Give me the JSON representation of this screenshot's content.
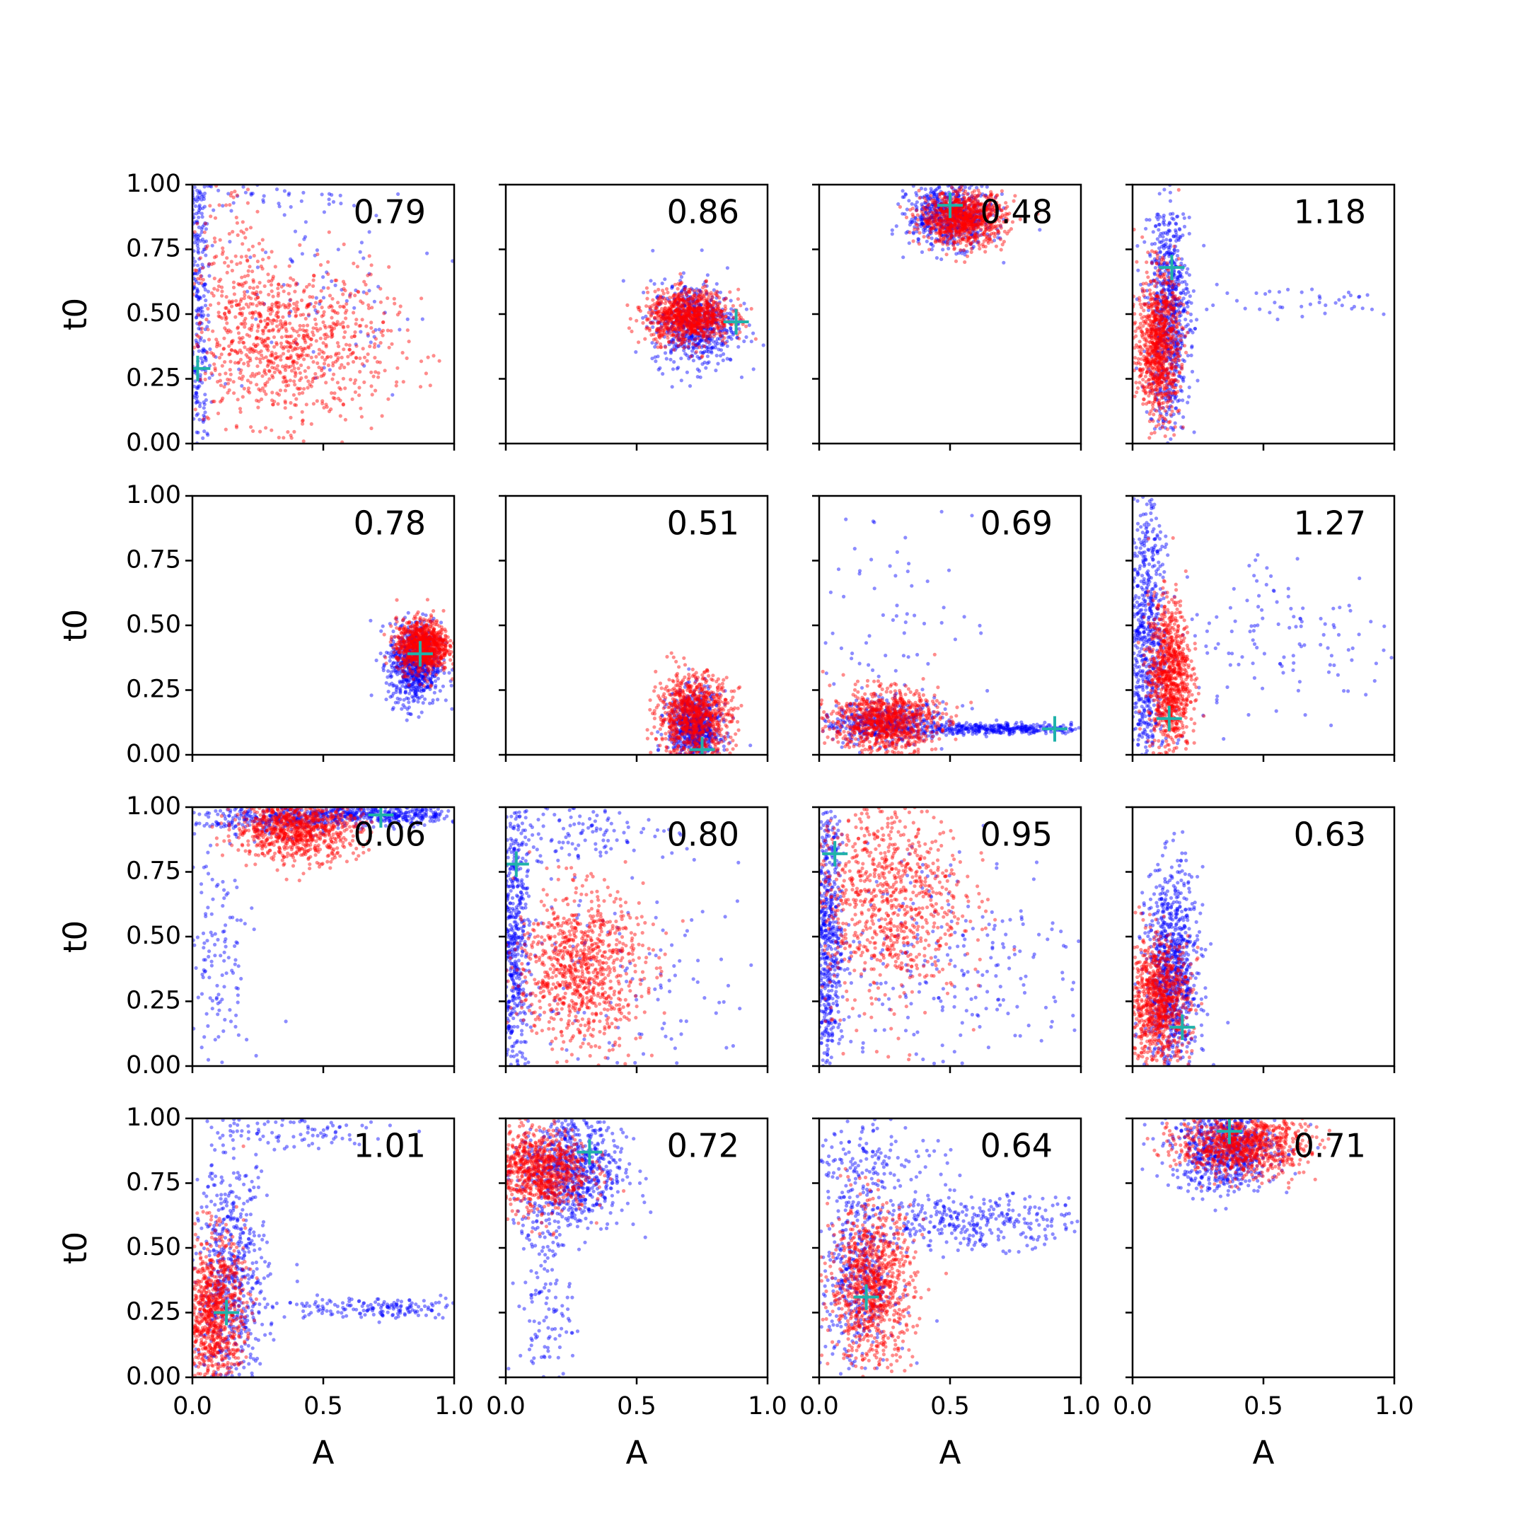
{
  "chart_data": {
    "type": "scatter",
    "layout": {
      "rows": 4,
      "cols": 4
    },
    "x_label": "A",
    "y_label": "t0",
    "xlim": [
      0,
      1
    ],
    "ylim": [
      0,
      1
    ],
    "x_ticks": [
      "0.0",
      "0.5",
      "1.0"
    ],
    "y_ticks": [
      "0.00",
      "0.25",
      "0.50",
      "0.75",
      "1.00"
    ],
    "series_colors": {
      "blue": "#0000ff",
      "red": "#ff0000",
      "marker": "#20b2aa"
    },
    "panels": [
      {
        "annotation": "0.79",
        "marker": [
          0.02,
          0.29
        ],
        "blue": [
          [
            0.02,
            0.5,
            0.025,
            0.6,
            0.6
          ],
          [
            0.2,
            0.95,
            0.25,
            0.03,
            0.05
          ],
          [
            0.55,
            0.55,
            0.3,
            0.2,
            0.1
          ]
        ],
        "red": [
          [
            0.35,
            0.38,
            0.2,
            0.15,
            1.0
          ],
          [
            0.15,
            0.7,
            0.08,
            0.2,
            0.15
          ]
        ]
      },
      {
        "annotation": "0.86",
        "marker": [
          0.88,
          0.47
        ],
        "blue": [
          [
            0.72,
            0.46,
            0.08,
            0.08,
            0.7
          ]
        ],
        "red": [
          [
            0.7,
            0.49,
            0.08,
            0.05,
            1.0
          ]
        ]
      },
      {
        "annotation": "0.48",
        "marker": [
          0.5,
          0.92
        ],
        "blue": [
          [
            0.5,
            0.88,
            0.08,
            0.06,
            0.7
          ]
        ],
        "red": [
          [
            0.55,
            0.87,
            0.08,
            0.05,
            1.0
          ]
        ]
      },
      {
        "annotation": "1.18",
        "marker": [
          0.15,
          0.68
        ],
        "blue": [
          [
            0.14,
            0.5,
            0.04,
            0.22,
            0.8
          ],
          [
            0.6,
            0.55,
            0.25,
            0.04,
            0.05
          ]
        ],
        "red": [
          [
            0.1,
            0.38,
            0.04,
            0.14,
            1.0
          ]
        ]
      },
      {
        "annotation": "0.78",
        "marker": [
          0.87,
          0.39
        ],
        "blue": [
          [
            0.85,
            0.35,
            0.05,
            0.08,
            0.8
          ]
        ],
        "red": [
          [
            0.88,
            0.42,
            0.05,
            0.05,
            1.0
          ]
        ]
      },
      {
        "annotation": "0.51",
        "marker": [
          0.75,
          0.02
        ],
        "blue": [
          [
            0.72,
            0.1,
            0.05,
            0.07,
            0.8
          ]
        ],
        "red": [
          [
            0.72,
            0.15,
            0.07,
            0.08,
            1.0
          ]
        ]
      },
      {
        "annotation": "0.69",
        "marker": [
          0.9,
          0.1
        ],
        "blue": [
          [
            0.25,
            0.12,
            0.12,
            0.04,
            0.5
          ],
          [
            0.7,
            0.1,
            0.18,
            0.01,
            0.4
          ],
          [
            0.2,
            0.5,
            0.2,
            0.25,
            0.1
          ]
        ],
        "red": [
          [
            0.25,
            0.13,
            0.1,
            0.06,
            1.0
          ]
        ]
      },
      {
        "annotation": "1.27",
        "marker": [
          0.14,
          0.14
        ],
        "blue": [
          [
            0.05,
            0.45,
            0.04,
            0.3,
            0.8
          ],
          [
            0.6,
            0.45,
            0.25,
            0.18,
            0.15
          ]
        ],
        "red": [
          [
            0.14,
            0.3,
            0.04,
            0.15,
            1.0
          ]
        ]
      },
      {
        "annotation": "0.06",
        "marker": [
          0.72,
          0.97
        ],
        "blue": [
          [
            0.7,
            0.97,
            0.2,
            0.02,
            0.5
          ],
          [
            0.1,
            0.4,
            0.06,
            0.25,
            0.15
          ],
          [
            0.3,
            0.95,
            0.15,
            0.03,
            0.3
          ]
        ],
        "red": [
          [
            0.4,
            0.92,
            0.12,
            0.06,
            1.0
          ]
        ]
      },
      {
        "annotation": "0.80",
        "marker": [
          0.04,
          0.78
        ],
        "blue": [
          [
            0.03,
            0.45,
            0.03,
            0.3,
            0.65
          ],
          [
            0.45,
            0.3,
            0.3,
            0.2,
            0.15
          ],
          [
            0.25,
            0.9,
            0.2,
            0.06,
            0.15
          ]
        ],
        "red": [
          [
            0.28,
            0.38,
            0.12,
            0.15,
            1.0
          ]
        ]
      },
      {
        "annotation": "0.95",
        "marker": [
          0.06,
          0.82
        ],
        "blue": [
          [
            0.03,
            0.5,
            0.03,
            0.3,
            0.7
          ],
          [
            0.5,
            0.4,
            0.3,
            0.25,
            0.3
          ]
        ],
        "red": [
          [
            0.25,
            0.65,
            0.15,
            0.2,
            1.0
          ]
        ]
      },
      {
        "annotation": "0.63",
        "marker": [
          0.19,
          0.15
        ],
        "blue": [
          [
            0.15,
            0.35,
            0.05,
            0.2,
            1.0
          ]
        ],
        "red": [
          [
            0.1,
            0.25,
            0.06,
            0.12,
            1.0
          ]
        ]
      },
      {
        "annotation": "1.01",
        "marker": [
          0.13,
          0.25
        ],
        "blue": [
          [
            0.15,
            0.35,
            0.07,
            0.25,
            0.7
          ],
          [
            0.7,
            0.27,
            0.2,
            0.02,
            0.2
          ],
          [
            0.35,
            0.95,
            0.2,
            0.04,
            0.1
          ]
        ],
        "red": [
          [
            0.08,
            0.25,
            0.06,
            0.15,
            1.0
          ]
        ]
      },
      {
        "annotation": "0.72",
        "marker": [
          0.32,
          0.87
        ],
        "blue": [
          [
            0.25,
            0.8,
            0.1,
            0.12,
            0.85
          ],
          [
            0.15,
            0.3,
            0.05,
            0.2,
            0.15
          ]
        ],
        "red": [
          [
            0.12,
            0.8,
            0.1,
            0.08,
            1.0
          ]
        ]
      },
      {
        "annotation": "0.64",
        "marker": [
          0.18,
          0.31
        ],
        "blue": [
          [
            0.15,
            0.4,
            0.07,
            0.2,
            0.5
          ],
          [
            0.6,
            0.6,
            0.2,
            0.05,
            0.35
          ],
          [
            0.2,
            0.85,
            0.15,
            0.08,
            0.15
          ]
        ],
        "red": [
          [
            0.2,
            0.35,
            0.08,
            0.15,
            1.0
          ]
        ]
      },
      {
        "annotation": "0.71",
        "marker": [
          0.37,
          0.95
        ],
        "blue": [
          [
            0.35,
            0.88,
            0.1,
            0.08,
            0.8
          ]
        ],
        "red": [
          [
            0.42,
            0.9,
            0.12,
            0.06,
            1.0
          ]
        ]
      }
    ]
  }
}
